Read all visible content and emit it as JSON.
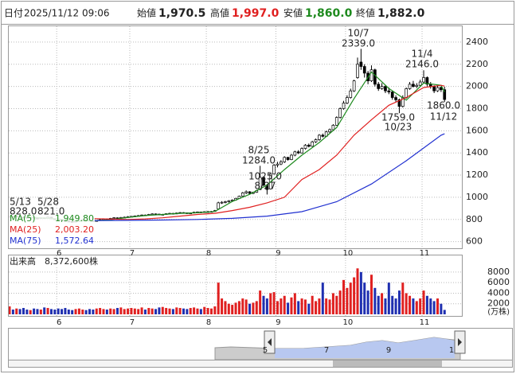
{
  "header": {
    "date_label": "日付",
    "date": "2025/11/12 09:06",
    "open_label": "始値",
    "open": "1,970.5",
    "high_label": "高値",
    "high": "1,997.0",
    "low_label": "安値",
    "low": "1,860.0",
    "close_label": "終値",
    "close": "1,882.0"
  },
  "chart_data": {
    "type": "candlestick",
    "ylim": [
      540,
      2550
    ],
    "yticks": [
      600,
      800,
      1000,
      1200,
      1400,
      1600,
      1800,
      2000,
      2200,
      2400
    ],
    "grid": true,
    "up_color": "#ffffff",
    "down_color": "#000000",
    "categories": [
      null,
      null,
      null,
      null,
      null,
      null,
      null,
      null,
      null,
      null,
      null,
      null,
      null,
      null,
      "6",
      null,
      null,
      null,
      null,
      null,
      null,
      null,
      null,
      null,
      null,
      null,
      null,
      null,
      null,
      null,
      null,
      null,
      null,
      null,
      null,
      "7",
      null,
      null,
      null,
      null,
      null,
      null,
      null,
      null,
      null,
      null,
      null,
      null,
      null,
      null,
      null,
      null,
      null,
      null,
      null,
      null,
      null,
      "8",
      null,
      null,
      null,
      null,
      null,
      null,
      null,
      null,
      null,
      null,
      null,
      null,
      null,
      null,
      null,
      null,
      null,
      null,
      null,
      "9",
      null,
      null,
      null,
      null,
      null,
      null,
      null,
      null,
      null,
      null,
      null,
      null,
      null,
      null,
      null,
      null,
      null,
      null,
      null,
      "10",
      null,
      null,
      null,
      null,
      null,
      null,
      null,
      null,
      null,
      null,
      null,
      null,
      null,
      null,
      null,
      null,
      null,
      null,
      null,
      null,
      null,
      "11",
      null,
      null,
      null,
      null,
      null,
      null
    ],
    "open": [
      820,
      828,
      825,
      830,
      822,
      818,
      815,
      820,
      812,
      808,
      815,
      810,
      821,
      805,
      800,
      795,
      790,
      785,
      780,
      778,
      783,
      790,
      795,
      792,
      788,
      785,
      790,
      798,
      805,
      800,
      810,
      815,
      812,
      818,
      820,
      825,
      828,
      832,
      835,
      840,
      838,
      845,
      850,
      848,
      842,
      846,
      852,
      855,
      850,
      858,
      862,
      860,
      855,
      858,
      865,
      868,
      862,
      868,
      870,
      872,
      895,
      950,
      955,
      960,
      968,
      975,
      990,
      1010,
      1040,
      1050,
      1035,
      1045,
      1070,
      1180,
      1110,
      1075,
      1210,
      1290,
      1300,
      1320,
      1360,
      1340,
      1380,
      1410,
      1400,
      1440,
      1470,
      1460,
      1500,
      1520,
      1560,
      1550,
      1590,
      1610,
      1650,
      1720,
      1800,
      1850,
      1900,
      1960,
      2080,
      2220,
      2180,
      2120,
      2050,
      2150,
      2020,
      1980,
      2000,
      1960,
      1950,
      1900,
      1880,
      1820,
      1900,
      1980,
      2020,
      2000,
      2010,
      2040,
      2080,
      2020,
      2000,
      1960,
      1990,
      1970.5
    ],
    "high": [
      835,
      832,
      834,
      833,
      826,
      822,
      824,
      822,
      815,
      818,
      818,
      826,
      823,
      808,
      803,
      798,
      794,
      788,
      784,
      788,
      794,
      800,
      798,
      795,
      792,
      795,
      802,
      810,
      808,
      814,
      820,
      818,
      822,
      826,
      830,
      832,
      836,
      840,
      845,
      844,
      850,
      855,
      854,
      852,
      850,
      856,
      860,
      858,
      862,
      866,
      865,
      863,
      862,
      870,
      872,
      870,
      874,
      878,
      876,
      886,
      960,
      965,
      968,
      975,
      982,
      995,
      1015,
      1048,
      1062,
      1055,
      1050,
      1068,
      1284,
      1190,
      1120,
      1215,
      1300,
      1320,
      1335,
      1370,
      1365,
      1390,
      1420,
      1425,
      1450,
      1480,
      1485,
      1510,
      1530,
      1570,
      1575,
      1600,
      1620,
      1660,
      1730,
      1810,
      1870,
      1920,
      1980,
      2060,
      2260,
      2339,
      2200,
      2140,
      2190,
      2160,
      2040,
      2030,
      2010,
      1990,
      1960,
      1920,
      1890,
      1920,
      1990,
      2040,
      2050,
      2030,
      2060,
      2146,
      2090,
      2040,
      2010,
      2010,
      2000,
      1997
    ],
    "low": [
      815,
      818,
      820,
      818,
      812,
      810,
      812,
      808,
      802,
      805,
      806,
      808,
      802,
      796,
      790,
      786,
      780,
      775,
      772,
      776,
      780,
      788,
      788,
      784,
      782,
      783,
      788,
      795,
      796,
      798,
      806,
      808,
      810,
      814,
      818,
      820,
      824,
      828,
      830,
      832,
      835,
      840,
      842,
      838,
      838,
      844,
      848,
      845,
      848,
      854,
      855,
      850,
      850,
      855,
      860,
      858,
      860,
      862,
      864,
      870,
      890,
      940,
      945,
      952,
      960,
      970,
      985,
      1005,
      1030,
      1025,
      1028,
      1040,
      1065,
      1100,
      1025,
      1070,
      1205,
      1270,
      1290,
      1310,
      1330,
      1335,
      1370,
      1390,
      1395,
      1430,
      1450,
      1455,
      1490,
      1510,
      1540,
      1545,
      1580,
      1600,
      1645,
      1710,
      1790,
      1840,
      1890,
      1950,
      2070,
      2150,
      2080,
      2020,
      2040,
      2000,
      1960,
      1970,
      1940,
      1930,
      1880,
      1860,
      1759,
      1810,
      1890,
      1970,
      1990,
      1985,
      2000,
      2030,
      2000,
      1980,
      1940,
      1950,
      1950,
      1860
    ],
    "close": [
      828,
      825,
      830,
      822,
      818,
      815,
      820,
      812,
      808,
      815,
      810,
      821,
      805,
      800,
      795,
      790,
      785,
      780,
      778,
      783,
      790,
      795,
      792,
      788,
      785,
      790,
      798,
      805,
      800,
      810,
      815,
      812,
      818,
      820,
      825,
      828,
      832,
      835,
      840,
      838,
      845,
      850,
      848,
      842,
      846,
      852,
      855,
      850,
      858,
      862,
      860,
      855,
      858,
      865,
      868,
      862,
      870,
      870,
      872,
      880,
      950,
      955,
      960,
      968,
      975,
      990,
      1010,
      1040,
      1050,
      1035,
      1045,
      1060,
      1180,
      1110,
      1070,
      1210,
      1290,
      1300,
      1320,
      1360,
      1340,
      1380,
      1410,
      1400,
      1440,
      1470,
      1460,
      1500,
      1520,
      1560,
      1550,
      1590,
      1610,
      1650,
      1720,
      1800,
      1850,
      1900,
      1960,
      2050,
      2200,
      2180,
      2120,
      2050,
      2150,
      2020,
      1980,
      2000,
      1960,
      1950,
      1900,
      1880,
      1820,
      1900,
      1980,
      2020,
      2000,
      2010,
      2040,
      2080,
      2020,
      2000,
      1960,
      1990,
      1970,
      1882
    ],
    "ma": [
      {
        "name": "MA(5)",
        "color": "#1e8a1e",
        "last": {
          "value": 1949.8,
          "label": "1,949.80"
        },
        "x": [
          4,
          9,
          14,
          19,
          24,
          29,
          34,
          39,
          44,
          49,
          54,
          59,
          64,
          69,
          74,
          79,
          84,
          89,
          94,
          99,
          104,
          109,
          114,
          119,
          124,
          125
        ],
        "values": [
          825,
          815,
          804,
          785,
          789,
          797,
          818,
          835,
          845,
          855,
          860,
          872,
          962,
          1027,
          1110,
          1250,
          1380,
          1494,
          1630,
          1890,
          2130,
          1982,
          1876,
          2030,
          2010,
          1949.8
        ]
      },
      {
        "name": "MA(25)",
        "color": "#e02020",
        "last": {
          "value": 2003.2,
          "label": "2,003.20"
        },
        "x": [
          24,
          29,
          34,
          39,
          44,
          49,
          54,
          59,
          64,
          69,
          74,
          79,
          84,
          89,
          94,
          99,
          104,
          109,
          114,
          119,
          124,
          125
        ],
        "values": [
          808,
          803,
          800,
          805,
          815,
          830,
          845,
          855,
          880,
          910,
          950,
          1000,
          1160,
          1250,
          1380,
          1560,
          1700,
          1830,
          1900,
          1990,
          2010,
          2003.2
        ]
      },
      {
        "name": "MA(75)",
        "color": "#2030d0",
        "last": {
          "value": 1572.64,
          "label": "1,572.64"
        },
        "x": [
          24,
          34,
          44,
          54,
          64,
          74,
          84,
          94,
          104,
          114,
          124,
          125
        ],
        "values": [
          790,
          792,
          795,
          800,
          810,
          830,
          870,
          960,
          1120,
          1330,
          1560,
          1572.64
        ]
      }
    ],
    "annotations": [
      {
        "date": "5/13",
        "value": 828,
        "label": "828.0"
      },
      {
        "date": "5/28",
        "value": 821,
        "label": "821.0"
      },
      {
        "date": "8/25",
        "value": 1284,
        "label": "1284.0"
      },
      {
        "date": "8/27",
        "value": 1025,
        "label": "1025.0"
      },
      {
        "date": "10/7",
        "value": 2339,
        "label": "2339.0"
      },
      {
        "date": "11/4",
        "value": 2146,
        "label": "2146.0"
      },
      {
        "date": "10/23",
        "value": 1759,
        "label": "1759.0"
      },
      {
        "date": "11/12",
        "value": 1860,
        "label": "1860.0"
      }
    ],
    "volume": {
      "title": "出来高",
      "last": {
        "value": 8372600,
        "label": "8,372,600株"
      },
      "unit": "(万株)",
      "ylim": [
        0,
        11300
      ],
      "yticks": [
        2000,
        4000,
        6000,
        8000
      ],
      "up_color": "#e02020",
      "down_color": "#1f2fb0",
      "values": [
        1500,
        900,
        1100,
        1000,
        1200,
        900,
        800,
        1100,
        1000,
        900,
        1300,
        1200,
        1000,
        900,
        1100,
        1000,
        1200,
        900,
        800,
        1000,
        1100,
        900,
        800,
        1000,
        900,
        1100,
        1200,
        1000,
        900,
        1100,
        1000,
        1200,
        1300,
        1000,
        1100,
        1200,
        1100,
        1000,
        1300,
        900,
        1200,
        1100,
        1000,
        1300,
        1400,
        1200,
        1100,
        1000,
        1300,
        1200,
        1100,
        1000,
        1200,
        1300,
        1100,
        1000,
        1400,
        1200,
        1100,
        1500,
        6000,
        3000,
        2500,
        2000,
        1800,
        2200,
        2500,
        3000,
        2800,
        2000,
        2200,
        2500,
        4500,
        3500,
        3000,
        4000,
        4200,
        2500,
        3000,
        3500,
        2200,
        3200,
        4000,
        2500,
        3000,
        2800,
        2000,
        3500,
        2500,
        3000,
        6000,
        3000,
        2800,
        4000,
        3500,
        4500,
        6500,
        5000,
        6000,
        7000,
        8700,
        8000,
        6000,
        4500,
        7500,
        5000,
        3500,
        4000,
        3000,
        6000,
        3500,
        3000,
        4500,
        6000,
        4000,
        3500,
        3000,
        2500,
        3000,
        4500,
        3500,
        3000,
        2500,
        3000,
        2000,
        837.26
      ]
    },
    "navigator": {
      "labels": [
        "5",
        "7",
        "9",
        "1"
      ]
    }
  }
}
